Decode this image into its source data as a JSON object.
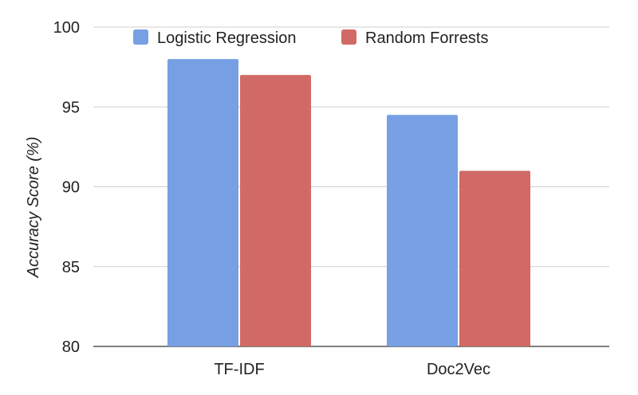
{
  "chart_data": {
    "type": "bar",
    "categories": [
      "TF-IDF",
      "Doc2Vec"
    ],
    "series": [
      {
        "name": "Logistic Regression",
        "values": [
          98.0,
          94.5
        ],
        "color": "#77a0e4"
      },
      {
        "name": "Random Forrests",
        "values": [
          97.0,
          91.0
        ],
        "color": "#d16a66"
      }
    ],
    "ylabel": "Accuracy Score (%)",
    "xlabel": "",
    "title": "",
    "ylim": [
      80,
      100
    ],
    "yticks": [
      "80",
      "85",
      "90",
      "95",
      "100"
    ],
    "grid": true,
    "legend_position": "top"
  }
}
